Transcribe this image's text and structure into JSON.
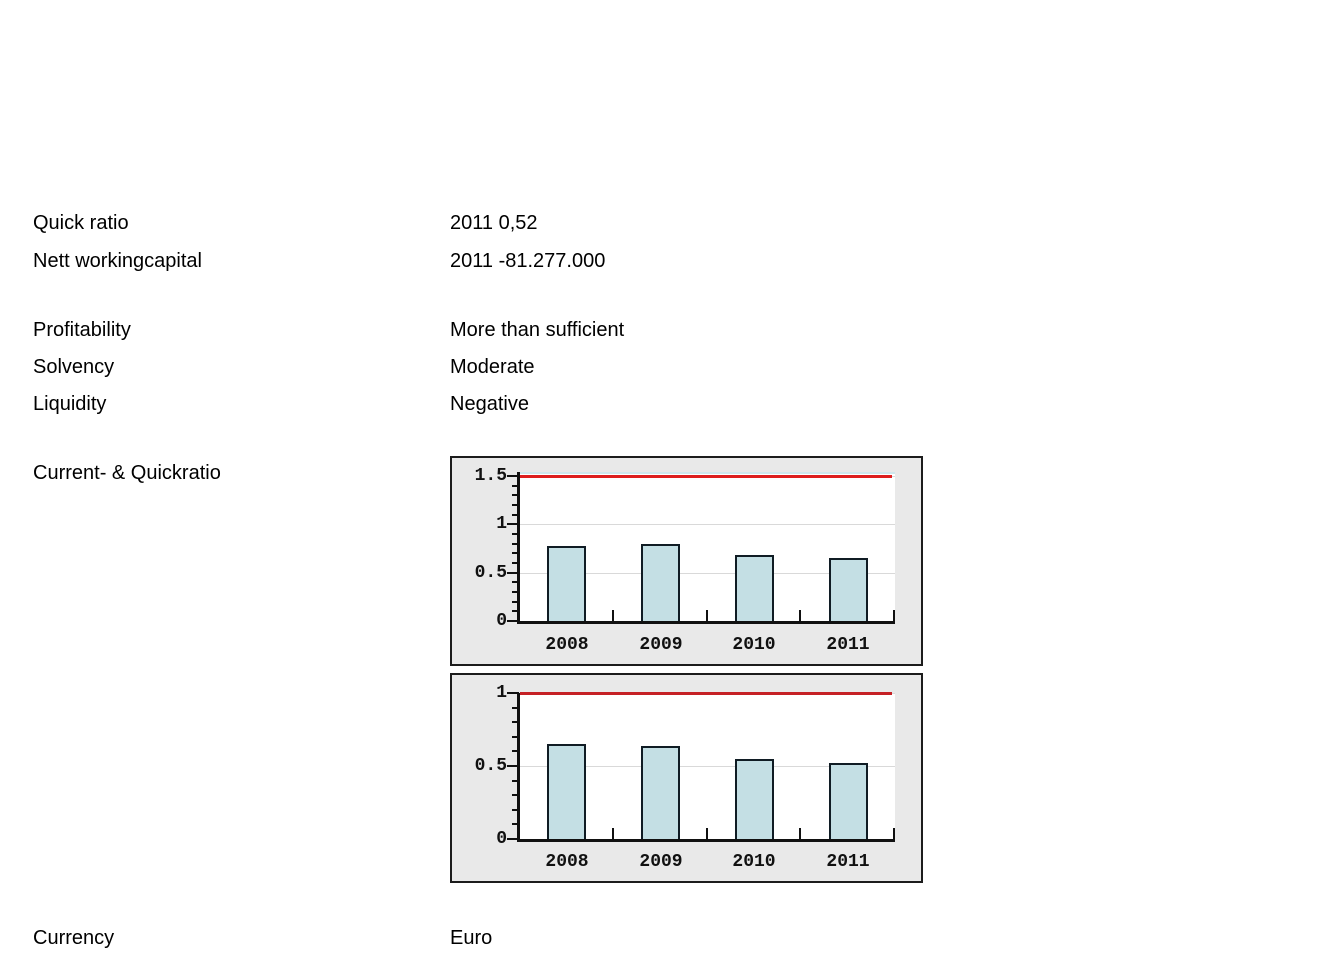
{
  "fields": [
    {
      "label": "Quick ratio",
      "value": "2011 0,52"
    },
    {
      "label": "Nett workingcapital",
      "value": "2011 -81.277.000"
    },
    {
      "label": "Profitability",
      "value": "More than sufficient"
    },
    {
      "label": "Solvency",
      "value": "Moderate"
    },
    {
      "label": "Liquidity",
      "value": "Negative"
    },
    {
      "label": "Current- & Quickratio",
      "value": ""
    },
    {
      "label": "Currency",
      "value": "Euro"
    }
  ],
  "chart_data": [
    {
      "type": "bar",
      "categories": [
        "2008",
        "2009",
        "2010",
        "2011"
      ],
      "values": [
        0.78,
        0.8,
        0.68,
        0.65
      ],
      "ylim": [
        0,
        1.54
      ],
      "yticks": [
        0,
        0.5,
        1,
        1.5
      ],
      "ytick_labels": [
        "0",
        "0.5",
        "1",
        "1.5"
      ],
      "minor_tick_step": 0.1,
      "threshold_line": 1.5,
      "xlabel": "",
      "ylabel": "",
      "grid": true,
      "legend": false,
      "colors": {
        "bar_fill": "#c4dfe4",
        "bar_border": "#101c24",
        "threshold": "#dd1f1f",
        "grid": "#d9d9d9",
        "plot_bg": "#ffffff",
        "frame_bg": "#e9e9e9",
        "frame_border": "#1c1c1c",
        "axis": "#111111",
        "plot_top_edge": "#cfe8ee"
      }
    },
    {
      "type": "bar",
      "categories": [
        "2008",
        "2009",
        "2010",
        "2011"
      ],
      "values": [
        0.65,
        0.64,
        0.55,
        0.52
      ],
      "ylim": [
        0,
        1.0
      ],
      "yticks": [
        0,
        0.5,
        1
      ],
      "ytick_labels": [
        "0",
        "0.5",
        "1"
      ],
      "minor_tick_step": 0.1,
      "threshold_line": 1.0,
      "xlabel": "",
      "ylabel": "",
      "grid": true,
      "legend": false,
      "colors": {
        "bar_fill": "#c4dfe4",
        "bar_border": "#101c24",
        "threshold": "#c52025",
        "grid": "#d9d9d9",
        "plot_bg": "#ffffff",
        "frame_bg": "#e9e9e9",
        "frame_border": "#1c1c1c",
        "axis": "#111111",
        "plot_top_edge": ""
      }
    }
  ]
}
